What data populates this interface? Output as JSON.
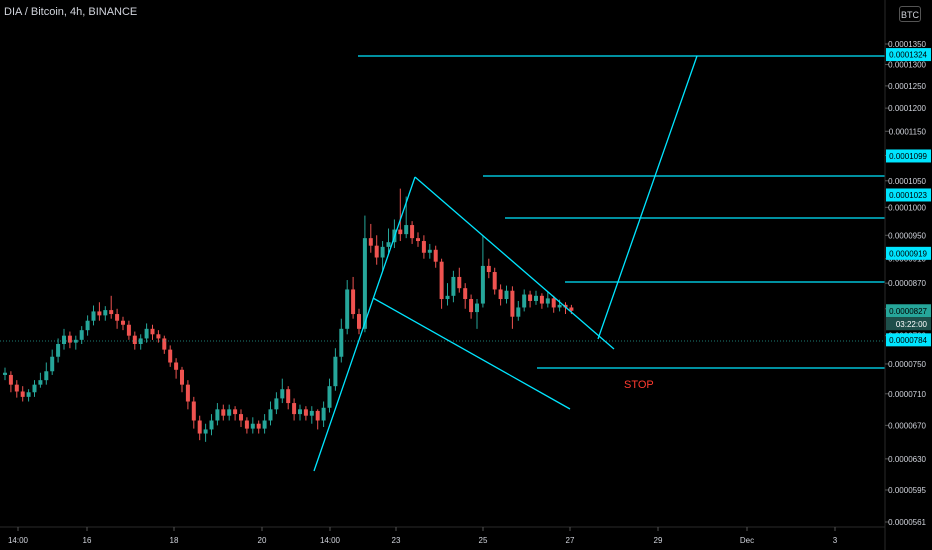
{
  "header": {
    "symbol_title": "DIA / Bitcoin, 4h, BINANCE",
    "currency_button": "BTC"
  },
  "colors": {
    "background": "#000000",
    "up_candle": "#26a69a",
    "down_candle": "#ef5350",
    "drawing": "#00e5ff",
    "stop_text": "#ff3b30",
    "axis_text": "#d1d4dc"
  },
  "chart_data": {
    "type": "candlestick",
    "title": "DIA / Bitcoin, 4h, BINANCE",
    "ylim": [
      5.65e-05,
      0.000138
    ],
    "y_scale": "log",
    "y_ticks": [
      "0.0001350",
      "0.0001300",
      "0.0001250",
      "0.0001200",
      "0.0001150",
      "0.0001100",
      "0.0001050",
      "0.0001000",
      "0.0000950",
      "0.0000910",
      "0.0000870",
      "0.0000830",
      "0.0000790",
      "0.0000750",
      "0.0000710",
      "0.0000670",
      "0.0000630",
      "0.0000595",
      "0.0000561"
    ],
    "x_ticks": [
      "14:00",
      "16",
      "18",
      "20",
      "14:00",
      "23",
      "25",
      "27",
      "29",
      "Dec",
      "3"
    ],
    "price_labels": [
      {
        "value": "0.0001324",
        "kind": "level"
      },
      {
        "value": "0.0001099",
        "kind": "level"
      },
      {
        "value": "0.0001023",
        "kind": "level"
      },
      {
        "value": "0.0000919",
        "kind": "level"
      },
      {
        "value": "0.0000827",
        "kind": "last_price"
      },
      {
        "value": "03:22:00",
        "kind": "countdown"
      },
      {
        "value": "0.0000784",
        "kind": "level"
      }
    ],
    "annotations": [
      {
        "text": "STOP"
      }
    ],
    "grid": false,
    "candle_series": [
      {
        "o": 7.38e-05,
        "c": 7.35e-05,
        "h": 7.45e-05,
        "l": 7.28e-05,
        "up": true
      },
      {
        "o": 7.35e-05,
        "c": 7.22e-05,
        "h": 7.4e-05,
        "l": 7.12e-05,
        "up": false
      },
      {
        "o": 7.22e-05,
        "c": 7.13e-05,
        "h": 7.28e-05,
        "l": 7.05e-05,
        "up": false
      },
      {
        "o": 7.13e-05,
        "c": 7.06e-05,
        "h": 7.2e-05,
        "l": 7e-05,
        "up": false
      },
      {
        "o": 7.06e-05,
        "c": 7.12e-05,
        "h": 7.16e-05,
        "l": 7e-05,
        "up": true
      },
      {
        "o": 7.12e-05,
        "c": 7.22e-05,
        "h": 7.28e-05,
        "l": 7.06e-05,
        "up": true
      },
      {
        "o": 7.22e-05,
        "c": 7.28e-05,
        "h": 7.38e-05,
        "l": 7.18e-05,
        "up": true
      },
      {
        "o": 7.28e-05,
        "c": 7.4e-05,
        "h": 7.52e-05,
        "l": 7.22e-05,
        "up": true
      },
      {
        "o": 7.4e-05,
        "c": 7.6e-05,
        "h": 7.7e-05,
        "l": 7.35e-05,
        "up": true
      },
      {
        "o": 7.6e-05,
        "c": 7.78e-05,
        "h": 7.86e-05,
        "l": 7.52e-05,
        "up": true
      },
      {
        "o": 7.78e-05,
        "c": 7.9e-05,
        "h": 8e-05,
        "l": 7.7e-05,
        "up": true
      },
      {
        "o": 7.9e-05,
        "c": 7.8e-05,
        "h": 7.96e-05,
        "l": 7.72e-05,
        "up": false
      },
      {
        "o": 7.8e-05,
        "c": 7.84e-05,
        "h": 7.9e-05,
        "l": 7.7e-05,
        "up": true
      },
      {
        "o": 7.84e-05,
        "c": 7.98e-05,
        "h": 8.04e-05,
        "l": 7.78e-05,
        "up": true
      },
      {
        "o": 7.98e-05,
        "c": 8.12e-05,
        "h": 8.2e-05,
        "l": 7.9e-05,
        "up": true
      },
      {
        "o": 8.12e-05,
        "c": 8.26e-05,
        "h": 8.35e-05,
        "l": 8.05e-05,
        "up": true
      },
      {
        "o": 8.26e-05,
        "c": 8.2e-05,
        "h": 8.4e-05,
        "l": 8.12e-05,
        "up": false
      },
      {
        "o": 8.2e-05,
        "c": 8.28e-05,
        "h": 8.34e-05,
        "l": 8.12e-05,
        "up": true
      },
      {
        "o": 8.28e-05,
        "c": 8.22e-05,
        "h": 8.5e-05,
        "l": 8.15e-05,
        "up": false
      },
      {
        "o": 8.22e-05,
        "c": 8.12e-05,
        "h": 8.3e-05,
        "l": 8e-05,
        "up": false
      },
      {
        "o": 8.12e-05,
        "c": 8.06e-05,
        "h": 8.18e-05,
        "l": 7.98e-05,
        "up": false
      },
      {
        "o": 8.06e-05,
        "c": 7.9e-05,
        "h": 8.12e-05,
        "l": 7.84e-05,
        "up": false
      },
      {
        "o": 7.9e-05,
        "c": 7.78e-05,
        "h": 7.96e-05,
        "l": 7.7e-05,
        "up": false
      },
      {
        "o": 7.78e-05,
        "c": 7.86e-05,
        "h": 7.92e-05,
        "l": 7.7e-05,
        "up": true
      },
      {
        "o": 7.86e-05,
        "c": 8e-05,
        "h": 8.08e-05,
        "l": 7.8e-05,
        "up": true
      },
      {
        "o": 8e-05,
        "c": 7.92e-05,
        "h": 8.06e-05,
        "l": 7.84e-05,
        "up": false
      },
      {
        "o": 7.92e-05,
        "c": 7.86e-05,
        "h": 7.98e-05,
        "l": 7.8e-05,
        "up": false
      },
      {
        "o": 7.86e-05,
        "c": 7.7e-05,
        "h": 7.9e-05,
        "l": 7.64e-05,
        "up": false
      },
      {
        "o": 7.7e-05,
        "c": 7.52e-05,
        "h": 7.76e-05,
        "l": 7.46e-05,
        "up": false
      },
      {
        "o": 7.52e-05,
        "c": 7.42e-05,
        "h": 7.58e-05,
        "l": 7.3e-05,
        "up": false
      },
      {
        "o": 7.42e-05,
        "c": 7.22e-05,
        "h": 7.46e-05,
        "l": 7.12e-05,
        "up": false
      },
      {
        "o": 7.22e-05,
        "c": 7e-05,
        "h": 7.28e-05,
        "l": 6.9e-05,
        "up": false
      },
      {
        "o": 7e-05,
        "c": 6.76e-05,
        "h": 7.06e-05,
        "l": 6.66e-05,
        "up": false
      },
      {
        "o": 6.76e-05,
        "c": 6.6e-05,
        "h": 6.82e-05,
        "l": 6.52e-05,
        "up": false
      },
      {
        "o": 6.6e-05,
        "c": 6.65e-05,
        "h": 6.72e-05,
        "l": 6.5e-05,
        "up": true
      },
      {
        "o": 6.65e-05,
        "c": 6.76e-05,
        "h": 6.84e-05,
        "l": 6.58e-05,
        "up": true
      },
      {
        "o": 6.76e-05,
        "c": 6.9e-05,
        "h": 6.98e-05,
        "l": 6.7e-05,
        "up": true
      },
      {
        "o": 6.9e-05,
        "c": 6.82e-05,
        "h": 6.96e-05,
        "l": 6.76e-05,
        "up": false
      },
      {
        "o": 6.82e-05,
        "c": 6.9e-05,
        "h": 6.96e-05,
        "l": 6.76e-05,
        "up": true
      },
      {
        "o": 6.9e-05,
        "c": 6.84e-05,
        "h": 6.94e-05,
        "l": 6.76e-05,
        "up": false
      },
      {
        "o": 6.84e-05,
        "c": 6.76e-05,
        "h": 6.9e-05,
        "l": 6.68e-05,
        "up": false
      },
      {
        "o": 6.76e-05,
        "c": 6.66e-05,
        "h": 6.8e-05,
        "l": 6.6e-05,
        "up": false
      },
      {
        "o": 6.66e-05,
        "c": 6.72e-05,
        "h": 6.8e-05,
        "l": 6.6e-05,
        "up": true
      },
      {
        "o": 6.72e-05,
        "c": 6.66e-05,
        "h": 6.76e-05,
        "l": 6.6e-05,
        "up": false
      },
      {
        "o": 6.66e-05,
        "c": 6.76e-05,
        "h": 6.84e-05,
        "l": 6.6e-05,
        "up": true
      },
      {
        "o": 6.76e-05,
        "c": 6.9e-05,
        "h": 7e-05,
        "l": 6.7e-05,
        "up": true
      },
      {
        "o": 6.9e-05,
        "c": 7.04e-05,
        "h": 7.12e-05,
        "l": 6.84e-05,
        "up": true
      },
      {
        "o": 7.04e-05,
        "c": 7.16e-05,
        "h": 7.3e-05,
        "l": 6.98e-05,
        "up": true
      },
      {
        "o": 7.16e-05,
        "c": 6.98e-05,
        "h": 7.2e-05,
        "l": 6.9e-05,
        "up": false
      },
      {
        "o": 6.98e-05,
        "c": 6.84e-05,
        "h": 7.04e-05,
        "l": 6.76e-05,
        "up": false
      },
      {
        "o": 6.84e-05,
        "c": 6.9e-05,
        "h": 6.96e-05,
        "l": 6.76e-05,
        "up": true
      },
      {
        "o": 6.9e-05,
        "c": 6.82e-05,
        "h": 6.94e-05,
        "l": 6.76e-05,
        "up": false
      },
      {
        "o": 6.82e-05,
        "c": 6.88e-05,
        "h": 6.94e-05,
        "l": 6.72e-05,
        "up": true
      },
      {
        "o": 6.88e-05,
        "c": 6.76e-05,
        "h": 6.9e-05,
        "l": 6.65e-05,
        "up": false
      },
      {
        "o": 6.76e-05,
        "c": 6.92e-05,
        "h": 7e-05,
        "l": 6.68e-05,
        "up": true
      },
      {
        "o": 6.92e-05,
        "c": 7.2e-05,
        "h": 7.3e-05,
        "l": 6.86e-05,
        "up": true
      },
      {
        "o": 7.2e-05,
        "c": 7.6e-05,
        "h": 7.72e-05,
        "l": 7.14e-05,
        "up": true
      },
      {
        "o": 7.6e-05,
        "c": 8e-05,
        "h": 8.15e-05,
        "l": 7.52e-05,
        "up": true
      },
      {
        "o": 8e-05,
        "c": 8.6e-05,
        "h": 8.75e-05,
        "l": 7.92e-05,
        "up": true
      },
      {
        "o": 8.6e-05,
        "c": 8.22e-05,
        "h": 8.8e-05,
        "l": 8.15e-05,
        "up": false
      },
      {
        "o": 8.22e-05,
        "c": 8e-05,
        "h": 8.3e-05,
        "l": 7.92e-05,
        "up": false
      },
      {
        "o": 8e-05,
        "c": 9.45e-05,
        "h": 9.85e-05,
        "l": 7.95e-05,
        "up": true
      },
      {
        "o": 9.45e-05,
        "c": 9.32e-05,
        "h": 9.7e-05,
        "l": 9.2e-05,
        "up": false
      },
      {
        "o": 9.32e-05,
        "c": 9.12e-05,
        "h": 9.5e-05,
        "l": 9e-05,
        "up": false
      },
      {
        "o": 9.12e-05,
        "c": 9.3e-05,
        "h": 9.4e-05,
        "l": 8.9e-05,
        "up": true
      },
      {
        "o": 9.3e-05,
        "c": 9.38e-05,
        "h": 9.62e-05,
        "l": 9.2e-05,
        "up": true
      },
      {
        "o": 9.38e-05,
        "c": 9.6e-05,
        "h": 9.78e-05,
        "l": 9.28e-05,
        "up": true
      },
      {
        "o": 9.6e-05,
        "c": 9.52e-05,
        "h": 0.0001035,
        "l": 9.4e-05,
        "up": false
      },
      {
        "o": 9.52e-05,
        "c": 9.68e-05,
        "h": 0.000102,
        "l": 9.45e-05,
        "up": true
      },
      {
        "o": 9.68e-05,
        "c": 9.45e-05,
        "h": 9.75e-05,
        "l": 9.35e-05,
        "up": false
      },
      {
        "o": 9.45e-05,
        "c": 9.4e-05,
        "h": 9.55e-05,
        "l": 9.3e-05,
        "up": false
      },
      {
        "o": 9.4e-05,
        "c": 9.2e-05,
        "h": 9.5e-05,
        "l": 9.1e-05,
        "up": false
      },
      {
        "o": 9.2e-05,
        "c": 9.25e-05,
        "h": 9.35e-05,
        "l": 9.1e-05,
        "up": true
      },
      {
        "o": 9.25e-05,
        "c": 9.05e-05,
        "h": 9.32e-05,
        "l": 8.95e-05,
        "up": false
      },
      {
        "o": 9.05e-05,
        "c": 8.45e-05,
        "h": 9.1e-05,
        "l": 8.3e-05,
        "up": false
      },
      {
        "o": 8.45e-05,
        "c": 8.5e-05,
        "h": 8.7e-05,
        "l": 8.35e-05,
        "up": true
      },
      {
        "o": 8.5e-05,
        "c": 8.8e-05,
        "h": 8.9e-05,
        "l": 8.4e-05,
        "up": true
      },
      {
        "o": 8.8e-05,
        "c": 8.62e-05,
        "h": 8.95e-05,
        "l": 8.55e-05,
        "up": false
      },
      {
        "o": 8.62e-05,
        "c": 8.45e-05,
        "h": 8.7e-05,
        "l": 8.3e-05,
        "up": false
      },
      {
        "o": 8.45e-05,
        "c": 8.25e-05,
        "h": 8.52e-05,
        "l": 8.15e-05,
        "up": false
      },
      {
        "o": 8.25e-05,
        "c": 8.38e-05,
        "h": 8.45e-05,
        "l": 8e-05,
        "up": true
      },
      {
        "o": 8.38e-05,
        "c": 8.98e-05,
        "h": 9.5e-05,
        "l": 8.32e-05,
        "up": true
      },
      {
        "o": 8.98e-05,
        "c": 8.88e-05,
        "h": 9.1e-05,
        "l": 8.78e-05,
        "up": false
      },
      {
        "o": 8.88e-05,
        "c": 8.6e-05,
        "h": 8.95e-05,
        "l": 8.52e-05,
        "up": false
      },
      {
        "o": 8.6e-05,
        "c": 8.45e-05,
        "h": 8.68e-05,
        "l": 8.35e-05,
        "up": false
      },
      {
        "o": 8.45e-05,
        "c": 8.58e-05,
        "h": 8.66e-05,
        "l": 8.38e-05,
        "up": true
      },
      {
        "o": 8.58e-05,
        "c": 8.18e-05,
        "h": 8.65e-05,
        "l": 8e-05,
        "up": false
      },
      {
        "o": 8.18e-05,
        "c": 8.32e-05,
        "h": 8.42e-05,
        "l": 8.12e-05,
        "up": true
      },
      {
        "o": 8.32e-05,
        "c": 8.52e-05,
        "h": 8.6e-05,
        "l": 8.26e-05,
        "up": true
      },
      {
        "o": 8.52e-05,
        "c": 8.42e-05,
        "h": 8.58e-05,
        "l": 8.32e-05,
        "up": false
      },
      {
        "o": 8.42e-05,
        "c": 8.5e-05,
        "h": 8.58e-05,
        "l": 8.36e-05,
        "up": true
      },
      {
        "o": 8.5e-05,
        "c": 8.38e-05,
        "h": 8.54e-05,
        "l": 8.3e-05,
        "up": false
      },
      {
        "o": 8.38e-05,
        "c": 8.46e-05,
        "h": 8.56e-05,
        "l": 8.32e-05,
        "up": true
      },
      {
        "o": 8.46e-05,
        "c": 8.32e-05,
        "h": 8.5e-05,
        "l": 8.24e-05,
        "up": false
      },
      {
        "o": 8.32e-05,
        "c": 8.36e-05,
        "h": 8.44e-05,
        "l": 8.26e-05,
        "up": true
      },
      {
        "o": 8.36e-05,
        "c": 8.32e-05,
        "h": 8.4e-05,
        "l": 8.22e-05,
        "up": false
      },
      {
        "o": 8.32e-05,
        "c": 8.27e-05,
        "h": 8.36e-05,
        "l": 8.22e-05,
        "up": false
      }
    ]
  }
}
